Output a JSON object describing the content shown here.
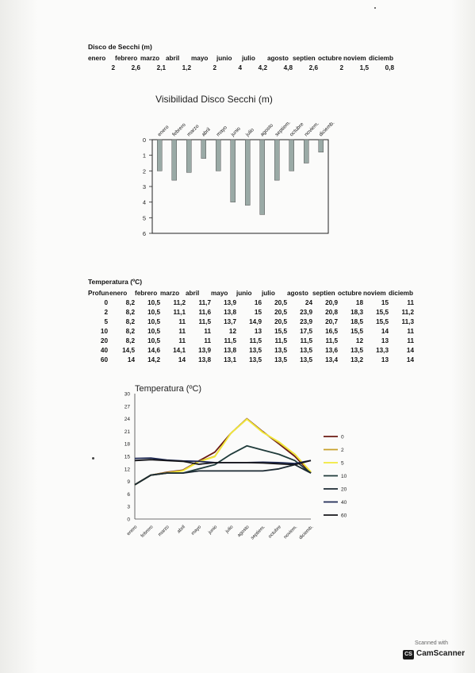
{
  "secchi": {
    "title": "Disco de Secchi (m)",
    "months": [
      "enero",
      "febrero",
      "marzo",
      "abril",
      "mayo",
      "junio",
      "julio",
      "agosto",
      "septien",
      "octubre",
      "noviem",
      "diciemb"
    ],
    "values": [
      "2",
      "2,6",
      "2,1",
      "1,2",
      "2",
      "4",
      "4,2",
      "4,8",
      "2,6",
      "2",
      "1,5",
      "0,8"
    ]
  },
  "temperature": {
    "title": "Temperatura (ºC)",
    "corner": "Profun",
    "months": [
      "enero",
      "febrero",
      "marzo",
      "abril",
      "mayo",
      "junio",
      "julio",
      "agosto",
      "septien",
      "octubre",
      "noviem",
      "diciemb"
    ],
    "rows": [
      {
        "depth": "0",
        "values": [
          "8,2",
          "10,5",
          "11,2",
          "11,7",
          "13,9",
          "16",
          "20,5",
          "24",
          "20,9",
          "18",
          "15",
          "11"
        ]
      },
      {
        "depth": "2",
        "values": [
          "8,2",
          "10,5",
          "11,1",
          "11,6",
          "13,8",
          "15",
          "20,5",
          "23,9",
          "20,8",
          "18,3",
          "15,5",
          "11,2"
        ]
      },
      {
        "depth": "5",
        "values": [
          "8,2",
          "10,5",
          "11",
          "11,5",
          "13,7",
          "14,9",
          "20,5",
          "23,9",
          "20,7",
          "18,5",
          "15,5",
          "11,3"
        ]
      },
      {
        "depth": "10",
        "values": [
          "8,2",
          "10,5",
          "11",
          "11",
          "12",
          "13",
          "15,5",
          "17,5",
          "16,5",
          "15,5",
          "14",
          "11"
        ]
      },
      {
        "depth": "20",
        "values": [
          "8,2",
          "10,5",
          "11",
          "11",
          "11,5",
          "11,5",
          "11,5",
          "11,5",
          "11,5",
          "12",
          "13",
          "11"
        ]
      },
      {
        "depth": "40",
        "values": [
          "14,5",
          "14,6",
          "14,1",
          "13,9",
          "13,8",
          "13,5",
          "13,5",
          "13,5",
          "13,6",
          "13,5",
          "13,3",
          "14"
        ]
      },
      {
        "depth": "60",
        "values": [
          "14",
          "14,2",
          "14",
          "13,8",
          "13,1",
          "13,5",
          "13,5",
          "13,5",
          "13,4",
          "13,2",
          "13",
          "14"
        ]
      }
    ]
  },
  "chart_data": [
    {
      "type": "bar",
      "title": "Visibilidad Disco Secchi (m)",
      "categories": [
        "enero",
        "febrero",
        "marzo",
        "abril",
        "mayo",
        "junio",
        "julio",
        "agosto",
        "septiem.",
        "octubre",
        "noviem.",
        "diciemb."
      ],
      "values": [
        2,
        2.6,
        2.1,
        1.2,
        2,
        4,
        4.2,
        4.8,
        2.6,
        2,
        1.5,
        0.8
      ],
      "ylim": [
        0,
        6
      ],
      "y_inverted": true,
      "yticks": [
        "0",
        "1",
        "2",
        "3",
        "4",
        "5",
        "6"
      ],
      "bar_color": "#9aaaa6"
    },
    {
      "type": "line",
      "title": "Temperatura (ºC)",
      "categories": [
        "enero",
        "febrero",
        "marzo",
        "abril",
        "mayo",
        "junio",
        "julio",
        "agosto",
        "septiem.",
        "octubre",
        "noviem.",
        "diciemb."
      ],
      "ylim": [
        0,
        30
      ],
      "yticks": [
        "0",
        "3",
        "6",
        "9",
        "12",
        "15",
        "18",
        "21",
        "24",
        "27",
        "30"
      ],
      "legend_position": "right",
      "series": [
        {
          "name": "0",
          "color": "#6b1a12",
          "values": [
            8.2,
            10.5,
            11.2,
            11.7,
            13.9,
            16,
            20.5,
            24,
            20.9,
            18,
            15,
            11
          ]
        },
        {
          "name": "2",
          "color": "#c8a02a",
          "values": [
            8.2,
            10.5,
            11.1,
            11.6,
            13.8,
            15,
            20.5,
            23.9,
            20.8,
            18.3,
            15.5,
            11.2
          ]
        },
        {
          "name": "5",
          "color": "#f2e93a",
          "values": [
            8.2,
            10.5,
            11,
            11.5,
            13.7,
            14.9,
            20.5,
            23.9,
            20.7,
            18.5,
            15.5,
            11.3
          ]
        },
        {
          "name": "10",
          "color": "#1f3b3a",
          "values": [
            8.2,
            10.5,
            11,
            11,
            12,
            13,
            15.5,
            17.5,
            16.5,
            15.5,
            14,
            11
          ]
        },
        {
          "name": "20",
          "color": "#1c2a33",
          "values": [
            8.2,
            10.5,
            11,
            11,
            11.5,
            11.5,
            11.5,
            11.5,
            11.5,
            12,
            13,
            11
          ]
        },
        {
          "name": "40",
          "color": "#1f2a55",
          "values": [
            14.5,
            14.6,
            14.1,
            13.9,
            13.8,
            13.5,
            13.5,
            13.5,
            13.6,
            13.5,
            13.3,
            14
          ]
        },
        {
          "name": "60",
          "color": "#15151a",
          "values": [
            14,
            14.2,
            14,
            13.8,
            13.1,
            13.5,
            13.5,
            13.5,
            13.4,
            13.2,
            13,
            14
          ]
        }
      ]
    }
  ],
  "scanner": {
    "caption": "Scanned with",
    "logo": "CS",
    "name": "CamScanner"
  }
}
